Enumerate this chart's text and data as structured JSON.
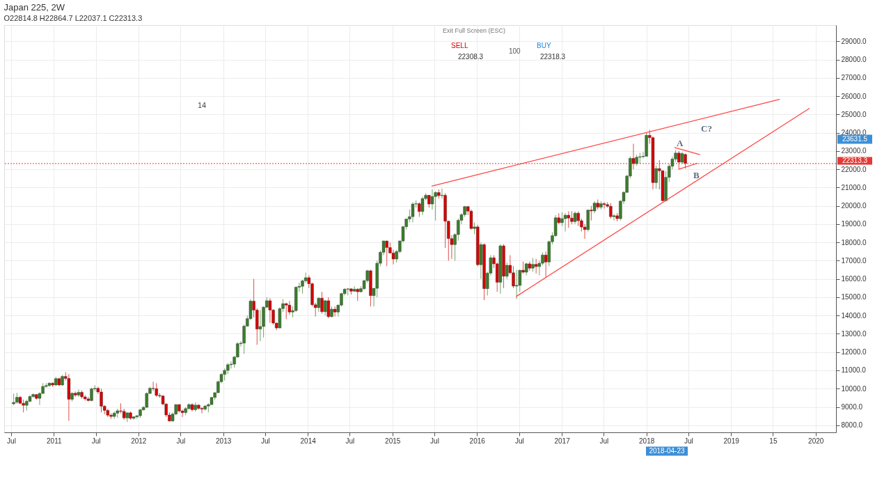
{
  "chart_data": {
    "type": "candlestick",
    "title": "Japan 225, 2W",
    "subtitle": "O22814.8 H22864.7 L22037.1 C22313.3",
    "x": [
      "2010-07-12",
      "2010-07-26",
      "2010-08-09",
      "2010-08-23",
      "2010-09-06",
      "2010-09-20",
      "2010-10-04",
      "2010-10-18",
      "2010-11-01",
      "2010-11-15",
      "2010-11-29",
      "2010-12-13",
      "2010-12-27",
      "2011-01-10",
      "2011-01-24",
      "2011-02-07",
      "2011-02-21",
      "2011-03-07",
      "2011-03-21",
      "2011-04-04",
      "2011-04-18",
      "2011-05-02",
      "2011-05-16",
      "2011-05-30",
      "2011-06-13",
      "2011-06-27",
      "2011-07-11",
      "2011-07-25",
      "2011-08-08",
      "2011-08-22",
      "2011-09-05",
      "2011-09-19",
      "2011-10-03",
      "2011-10-17",
      "2011-10-31",
      "2011-11-14",
      "2011-11-28",
      "2011-12-12",
      "2011-12-26",
      "2012-01-09",
      "2012-01-23",
      "2012-02-06",
      "2012-02-20",
      "2012-03-05",
      "2012-03-19",
      "2012-04-02",
      "2012-04-16",
      "2012-04-30",
      "2012-05-14",
      "2012-05-28",
      "2012-06-11",
      "2012-06-25",
      "2012-07-09",
      "2012-07-23",
      "2012-08-06",
      "2012-08-20",
      "2012-09-03",
      "2012-09-17",
      "2012-10-01",
      "2012-10-15",
      "2012-10-29",
      "2012-11-12",
      "2012-11-26",
      "2012-12-10",
      "2012-12-24",
      "2013-01-07",
      "2013-01-21",
      "2013-02-04",
      "2013-02-18",
      "2013-03-04",
      "2013-03-18",
      "2013-04-01",
      "2013-04-15",
      "2013-04-29",
      "2013-05-13",
      "2013-05-27",
      "2013-06-10",
      "2013-06-24",
      "2013-07-08",
      "2013-07-22",
      "2013-08-05",
      "2013-08-19",
      "2013-09-02",
      "2013-09-16",
      "2013-09-30",
      "2013-10-14",
      "2013-10-28",
      "2013-11-11",
      "2013-11-25",
      "2013-12-09",
      "2013-12-23",
      "2014-01-06",
      "2014-01-20",
      "2014-02-03",
      "2014-02-17",
      "2014-03-03",
      "2014-03-17",
      "2014-03-31",
      "2014-04-14",
      "2014-04-28",
      "2014-05-12",
      "2014-05-26",
      "2014-06-09",
      "2014-06-23",
      "2014-07-07",
      "2014-07-21",
      "2014-08-04",
      "2014-08-18",
      "2014-09-01",
      "2014-09-15",
      "2014-09-29",
      "2014-10-13",
      "2014-10-27",
      "2014-11-10",
      "2014-11-24",
      "2014-12-08",
      "2014-12-22",
      "2015-01-05",
      "2015-01-19",
      "2015-02-02",
      "2015-02-16",
      "2015-03-02",
      "2015-03-16",
      "2015-03-30",
      "2015-04-13",
      "2015-04-27",
      "2015-05-11",
      "2015-05-25",
      "2015-06-08",
      "2015-06-22",
      "2015-07-06",
      "2015-07-20",
      "2015-08-03",
      "2015-08-17",
      "2015-08-31",
      "2015-09-14",
      "2015-09-28",
      "2015-10-12",
      "2015-10-26",
      "2015-11-09",
      "2015-11-23",
      "2015-12-07",
      "2015-12-21",
      "2016-01-04",
      "2016-01-18",
      "2016-02-01",
      "2016-02-15",
      "2016-02-29",
      "2016-03-14",
      "2016-03-28",
      "2016-04-11",
      "2016-04-25",
      "2016-05-09",
      "2016-05-23",
      "2016-06-06",
      "2016-06-20",
      "2016-07-04",
      "2016-07-18",
      "2016-08-01",
      "2016-08-15",
      "2016-08-29",
      "2016-09-12",
      "2016-09-26",
      "2016-10-10",
      "2016-10-24",
      "2016-11-07",
      "2016-11-21",
      "2016-12-05",
      "2016-12-19",
      "2017-01-02",
      "2017-01-16",
      "2017-01-30",
      "2017-02-13",
      "2017-02-27",
      "2017-03-13",
      "2017-03-27",
      "2017-04-10",
      "2017-04-24",
      "2017-05-08",
      "2017-05-22",
      "2017-06-05",
      "2017-06-19",
      "2017-07-03",
      "2017-07-17",
      "2017-07-31",
      "2017-08-14",
      "2017-08-28",
      "2017-09-11",
      "2017-09-25",
      "2017-10-09",
      "2017-10-23",
      "2017-11-06",
      "2017-11-20",
      "2017-12-04",
      "2017-12-18",
      "2018-01-01",
      "2018-01-15",
      "2018-01-29",
      "2018-02-12",
      "2018-02-26",
      "2018-03-12",
      "2018-03-26",
      "2018-04-09",
      "2018-04-23",
      "2018-05-07",
      "2018-05-21",
      "2018-06-04",
      "2018-06-18"
    ],
    "ohlc": [
      [
        9170,
        9730,
        9100,
        9250
      ],
      [
        9260,
        9770,
        9170,
        9530
      ],
      [
        9530,
        9600,
        9150,
        9200
      ],
      [
        9200,
        9400,
        8700,
        9090
      ],
      [
        9090,
        9400,
        8800,
        9310
      ],
      [
        9310,
        9650,
        9250,
        9570
      ],
      [
        9570,
        9750,
        9500,
        9680
      ],
      [
        9680,
        9700,
        9400,
        9470
      ],
      [
        9470,
        9800,
        9110,
        9740
      ],
      [
        9740,
        10300,
        9700,
        10120
      ],
      [
        10120,
        10300,
        10050,
        10170
      ],
      [
        10170,
        10350,
        10100,
        10300
      ],
      [
        10300,
        10350,
        10100,
        10200
      ],
      [
        10200,
        10650,
        10150,
        10550
      ],
      [
        10550,
        10600,
        10150,
        10200
      ],
      [
        10200,
        10750,
        10150,
        10670
      ],
      [
        10670,
        10900,
        10450,
        10560
      ],
      [
        10560,
        10800,
        8240,
        9420
      ],
      [
        9420,
        9800,
        9300,
        9750
      ],
      [
        9750,
        9850,
        9550,
        9650
      ],
      [
        9650,
        9950,
        9550,
        9800
      ],
      [
        9800,
        9900,
        9450,
        9550
      ],
      [
        9550,
        9650,
        9350,
        9440
      ],
      [
        9440,
        9550,
        9300,
        9350
      ],
      [
        9350,
        10050,
        9300,
        9990
      ],
      [
        9990,
        10200,
        9850,
        10020
      ],
      [
        10020,
        10100,
        9700,
        9820
      ],
      [
        9820,
        10000,
        8700,
        9040
      ],
      [
        9040,
        9100,
        8600,
        8810
      ],
      [
        8810,
        8900,
        8450,
        8550
      ],
      [
        8550,
        8650,
        8350,
        8480
      ],
      [
        8480,
        8750,
        8350,
        8660
      ],
      [
        8660,
        8900,
        8400,
        8790
      ],
      [
        8790,
        9200,
        8650,
        8760
      ],
      [
        8760,
        8900,
        8300,
        8400
      ],
      [
        8400,
        8700,
        8170,
        8680
      ],
      [
        8680,
        8750,
        8300,
        8380
      ],
      [
        8380,
        8500,
        8300,
        8460
      ],
      [
        8460,
        8550,
        8350,
        8520
      ],
      [
        8520,
        8900,
        8400,
        8840
      ],
      [
        8840,
        9050,
        8800,
        8980
      ],
      [
        8980,
        9800,
        8950,
        9740
      ],
      [
        9740,
        10100,
        9700,
        10020
      ],
      [
        10020,
        10380,
        9870,
        10000
      ],
      [
        10000,
        10300,
        9550,
        9630
      ],
      [
        9630,
        9750,
        9500,
        9600
      ],
      [
        9600,
        9650,
        9100,
        9160
      ],
      [
        9160,
        9200,
        8450,
        8560
      ],
      [
        8560,
        8700,
        8200,
        8230
      ],
      [
        8230,
        8700,
        8200,
        8610
      ],
      [
        8610,
        9150,
        8550,
        9130
      ],
      [
        9130,
        9150,
        8700,
        8780
      ],
      [
        8780,
        8850,
        8450,
        8690
      ],
      [
        8690,
        9000,
        8550,
        8910
      ],
      [
        8910,
        9200,
        8850,
        9130
      ],
      [
        9130,
        9200,
        8750,
        8850
      ],
      [
        8850,
        9250,
        8750,
        9100
      ],
      [
        9100,
        9150,
        8850,
        8920
      ],
      [
        8920,
        9000,
        8650,
        8880
      ],
      [
        8880,
        9100,
        8800,
        9050
      ],
      [
        9050,
        9200,
        8700,
        9130
      ],
      [
        9130,
        9550,
        9100,
        9520
      ],
      [
        9520,
        9800,
        9400,
        9780
      ],
      [
        9780,
        10450,
        9750,
        10380
      ],
      [
        10380,
        10850,
        10300,
        10780
      ],
      [
        10780,
        11100,
        10450,
        11000
      ],
      [
        11000,
        11400,
        10800,
        11310
      ],
      [
        11310,
        11500,
        11100,
        11340
      ],
      [
        11340,
        11800,
        11150,
        11730
      ],
      [
        11730,
        12550,
        11700,
        12460
      ],
      [
        12460,
        12600,
        12300,
        12490
      ],
      [
        12490,
        13500,
        11900,
        13420
      ],
      [
        13420,
        14000,
        13400,
        13830
      ],
      [
        13830,
        14900,
        13750,
        14790
      ],
      [
        14790,
        16000,
        13900,
        14300
      ],
      [
        14300,
        14400,
        12400,
        13260
      ],
      [
        13260,
        14300,
        12600,
        13400
      ],
      [
        13400,
        14500,
        12800,
        14460
      ],
      [
        14460,
        15000,
        14400,
        14810
      ],
      [
        14810,
        14950,
        13600,
        14300
      ],
      [
        14300,
        14350,
        13500,
        13590
      ],
      [
        13590,
        13600,
        13200,
        13320
      ],
      [
        13320,
        14450,
        13300,
        14380
      ],
      [
        14380,
        14900,
        14200,
        14650
      ],
      [
        14650,
        14700,
        13800,
        14570
      ],
      [
        14570,
        14800,
        14050,
        14190
      ],
      [
        14190,
        14500,
        13900,
        14270
      ],
      [
        14270,
        15600,
        14200,
        15550
      ],
      [
        15550,
        15800,
        15300,
        15600
      ],
      [
        15600,
        15950,
        15200,
        15900
      ],
      [
        15900,
        16350,
        15800,
        16070
      ],
      [
        16070,
        16200,
        15500,
        15740
      ],
      [
        15740,
        15800,
        14500,
        14590
      ],
      [
        14590,
        14700,
        13950,
        14430
      ],
      [
        14430,
        15000,
        14200,
        14950
      ],
      [
        14950,
        15300,
        14100,
        14210
      ],
      [
        14210,
        14850,
        14000,
        14810
      ],
      [
        14810,
        15000,
        13850,
        13940
      ],
      [
        13940,
        14500,
        13900,
        14350
      ],
      [
        14350,
        14500,
        13950,
        14190
      ],
      [
        14190,
        14600,
        13950,
        14570
      ],
      [
        14570,
        15250,
        14500,
        15200
      ],
      [
        15200,
        15500,
        15100,
        15440
      ],
      [
        15440,
        15500,
        15100,
        15460
      ],
      [
        15460,
        15500,
        15150,
        15330
      ],
      [
        15330,
        15600,
        15300,
        15440
      ],
      [
        15440,
        15500,
        14800,
        15300
      ],
      [
        15300,
        15600,
        15250,
        15470
      ],
      [
        15470,
        15950,
        15400,
        15910
      ],
      [
        15910,
        16500,
        15800,
        16450
      ],
      [
        16450,
        16500,
        14500,
        15090
      ],
      [
        15090,
        15500,
        14500,
        15490
      ],
      [
        15490,
        17000,
        15000,
        16860
      ],
      [
        16860,
        17550,
        16700,
        17460
      ],
      [
        17460,
        18100,
        17300,
        18080
      ],
      [
        18080,
        18100,
        16700,
        17720
      ],
      [
        17720,
        18000,
        17400,
        17420
      ],
      [
        17420,
        17600,
        16800,
        17090
      ],
      [
        17090,
        17600,
        16900,
        17500
      ],
      [
        17500,
        18100,
        17400,
        18080
      ],
      [
        18080,
        18900,
        18000,
        18860
      ],
      [
        18860,
        19300,
        18700,
        19280
      ],
      [
        19280,
        19800,
        19100,
        19410
      ],
      [
        19410,
        20200,
        19100,
        20100
      ],
      [
        20100,
        20300,
        19900,
        20120
      ],
      [
        20120,
        20200,
        19400,
        19690
      ],
      [
        19690,
        20500,
        19500,
        20400
      ],
      [
        20400,
        20700,
        20300,
        20580
      ],
      [
        20580,
        20600,
        19900,
        20100
      ],
      [
        20100,
        20900,
        19800,
        20510
      ],
      [
        20510,
        20800,
        19200,
        20730
      ],
      [
        20730,
        20900,
        20400,
        20560
      ],
      [
        20560,
        20950,
        20400,
        20580
      ],
      [
        20580,
        20700,
        17700,
        19160
      ],
      [
        19160,
        19200,
        17000,
        18210
      ],
      [
        18210,
        18400,
        17100,
        17880
      ],
      [
        17880,
        18500,
        17000,
        18430
      ],
      [
        18430,
        19300,
        18100,
        19210
      ],
      [
        19210,
        19600,
        19000,
        19520
      ],
      [
        19520,
        20000,
        19400,
        19960
      ],
      [
        19960,
        20000,
        19500,
        19710
      ],
      [
        19710,
        19800,
        18700,
        18760
      ],
      [
        18760,
        19100,
        18450,
        18850
      ],
      [
        18850,
        18950,
        16700,
        16780
      ],
      [
        16780,
        18000,
        16000,
        17880
      ],
      [
        17880,
        17950,
        14840,
        15470
      ],
      [
        15470,
        16400,
        15100,
        16320
      ],
      [
        16320,
        17300,
        16200,
        17160
      ],
      [
        17160,
        17300,
        16600,
        16830
      ],
      [
        16830,
        16900,
        15300,
        15820
      ],
      [
        15820,
        17900,
        15200,
        17810
      ],
      [
        17810,
        17900,
        15500,
        16150
      ],
      [
        16150,
        16900,
        16000,
        16750
      ],
      [
        16750,
        17300,
        16250,
        16340
      ],
      [
        16340,
        16700,
        15500,
        15610
      ],
      [
        15610,
        16500,
        14900,
        15650
      ],
      [
        15650,
        16500,
        15300,
        16480
      ],
      [
        16480,
        16950,
        16300,
        16370
      ],
      [
        16370,
        16900,
        16200,
        16830
      ],
      [
        16830,
        16950,
        16450,
        16590
      ],
      [
        16590,
        17150,
        16400,
        16800
      ],
      [
        16800,
        17100,
        16300,
        16680
      ],
      [
        16680,
        17000,
        16200,
        16860
      ],
      [
        16860,
        17450,
        16750,
        17310
      ],
      [
        17310,
        17500,
        16100,
        16930
      ],
      [
        16930,
        18100,
        16700,
        18040
      ],
      [
        18040,
        18550,
        17900,
        18370
      ],
      [
        18370,
        19500,
        18300,
        19350
      ],
      [
        19350,
        19600,
        19000,
        19080
      ],
      [
        19080,
        19650,
        18900,
        19300
      ],
      [
        19300,
        19600,
        18600,
        19490
      ],
      [
        19490,
        19700,
        18800,
        19330
      ],
      [
        19330,
        19700,
        19000,
        19140
      ],
      [
        19140,
        19700,
        19000,
        19600
      ],
      [
        19600,
        19700,
        18900,
        19190
      ],
      [
        19190,
        19300,
        18600,
        18840
      ],
      [
        18840,
        19000,
        18200,
        18700
      ],
      [
        18700,
        19800,
        18600,
        19770
      ],
      [
        19770,
        20000,
        19200,
        19720
      ],
      [
        19720,
        20250,
        19600,
        20150
      ],
      [
        20150,
        20350,
        19800,
        19930
      ],
      [
        19930,
        20250,
        19800,
        20120
      ],
      [
        20120,
        20200,
        19850,
        20070
      ],
      [
        20070,
        20200,
        19900,
        19980
      ],
      [
        19980,
        20150,
        19300,
        19410
      ],
      [
        19410,
        19550,
        19200,
        19460
      ],
      [
        19460,
        19600,
        19150,
        19300
      ],
      [
        19300,
        20300,
        19200,
        20260
      ],
      [
        20260,
        20800,
        20100,
        20740
      ],
      [
        20740,
        21700,
        20700,
        21630
      ],
      [
        21630,
        22700,
        21500,
        22600
      ],
      [
        22600,
        23400,
        22000,
        22310
      ],
      [
        22310,
        22800,
        22200,
        22660
      ],
      [
        22660,
        22900,
        22300,
        22690
      ],
      [
        22690,
        22950,
        22600,
        22710
      ],
      [
        22710,
        24000,
        22700,
        23860
      ],
      [
        23860,
        24150,
        23400,
        23730
      ],
      [
        23730,
        23800,
        20900,
        21270
      ],
      [
        21270,
        22200,
        20950,
        22040
      ],
      [
        22040,
        22500,
        20900,
        21920
      ],
      [
        21920,
        21950,
        20250,
        20280
      ],
      [
        20280,
        21900,
        20250,
        21560
      ],
      [
        21560,
        22300,
        21300,
        22170
      ],
      [
        22170,
        22700,
        22000,
        22560
      ],
      [
        22560,
        23050,
        22400,
        22890
      ],
      [
        22890,
        23000,
        22000,
        22390
      ],
      [
        22390,
        22950,
        22300,
        22860
      ],
      [
        22814.8,
        22864.7,
        22037.1,
        22313.3
      ]
    ],
    "series": [
      {
        "type": "line",
        "color": "#ff4545",
        "x": [
          "2015-06-19",
          "2019-07-30"
        ],
        "values": [
          21080,
          25830
        ]
      },
      {
        "type": "line",
        "color": "#ff4545",
        "x": [
          "2016-06-18",
          "2019-12-06"
        ],
        "values": [
          15040,
          25340
        ]
      },
      {
        "type": "line",
        "color": "#ff4545",
        "x": [
          "2018-05-02",
          "2018-08-20"
        ],
        "values": [
          23190,
          22800
        ]
      },
      {
        "type": "line",
        "color": "#ff4545",
        "x": [
          "2018-05-20",
          "2018-08-10"
        ],
        "values": [
          22000,
          22330
        ]
      }
    ],
    "ref_lines": [
      {
        "axis": "y",
        "value": 22313.3,
        "label": "22313.3",
        "color": "#e53935",
        "line_style": "dotted"
      }
    ],
    "annotations": [
      "A",
      "B",
      "C?",
      "23631.5",
      "2018-04-23",
      "Exit Full Screen (ESC)",
      "SELL",
      "22308.3",
      "100",
      "BUY",
      "22318.3",
      "14"
    ],
    "xlim": [
      "2010-06-16",
      "2020-03-14"
    ],
    "ylim": [
      7610,
      29890
    ],
    "xticks": [
      {
        "value": "2010-07-01",
        "label": "Jul"
      },
      {
        "value": "2011-01-01",
        "label": "2011"
      },
      {
        "value": "2011-07-01",
        "label": "Jul"
      },
      {
        "value": "2012-01-01",
        "label": "2012"
      },
      {
        "value": "2012-07-01",
        "label": "Jul"
      },
      {
        "value": "2013-01-01",
        "label": "2013"
      },
      {
        "value": "2013-07-01",
        "label": "Jul"
      },
      {
        "value": "2014-01-01",
        "label": "2014"
      },
      {
        "value": "2014-07-01",
        "label": "Jul"
      },
      {
        "value": "2015-01-01",
        "label": "2015"
      },
      {
        "value": "2015-07-01",
        "label": "Jul"
      },
      {
        "value": "2016-01-01",
        "label": "2016"
      },
      {
        "value": "2016-07-01",
        "label": "Jul"
      },
      {
        "value": "2017-01-01",
        "label": "2017"
      },
      {
        "value": "2017-07-01",
        "label": "Jul"
      },
      {
        "value": "2018-01-01",
        "label": "2018"
      },
      {
        "value": "2018-07-01",
        "label": "Jul"
      },
      {
        "value": "2019-01-01",
        "label": "2019"
      },
      {
        "value": "2019-07-01",
        "label": "15"
      },
      {
        "value": "2020-01-01",
        "label": "2020"
      }
    ],
    "yticks": [
      {
        "value": 8000,
        "label": "8000.0"
      },
      {
        "value": 9000,
        "label": "9000.0"
      },
      {
        "value": 10000,
        "label": "10000.0"
      },
      {
        "value": 11000,
        "label": "11000.0"
      },
      {
        "value": 12000,
        "label": "12000.0"
      },
      {
        "value": 13000,
        "label": "13000.0"
      },
      {
        "value": 14000,
        "label": "14000.0"
      },
      {
        "value": 15000,
        "label": "15000.0"
      },
      {
        "value": 16000,
        "label": "16000.0"
      },
      {
        "value": 17000,
        "label": "17000.0"
      },
      {
        "value": 18000,
        "label": "18000.0"
      },
      {
        "value": 19000,
        "label": "19000.0"
      },
      {
        "value": 20000,
        "label": "20000.0"
      },
      {
        "value": 21000,
        "label": "21000.0"
      },
      {
        "value": 22000,
        "label": "22000.0"
      },
      {
        "value": 23000,
        "label": "23000.0"
      },
      {
        "value": 24000,
        "label": "24000.0"
      },
      {
        "value": 25000,
        "label": "25000.0"
      },
      {
        "value": 26000,
        "label": "26000.0"
      },
      {
        "value": 27000,
        "label": "27000.0"
      },
      {
        "value": 28000,
        "label": "28000.0"
      },
      {
        "value": 29000,
        "label": "29000.0"
      }
    ],
    "grid": true,
    "legend": false
  }
}
